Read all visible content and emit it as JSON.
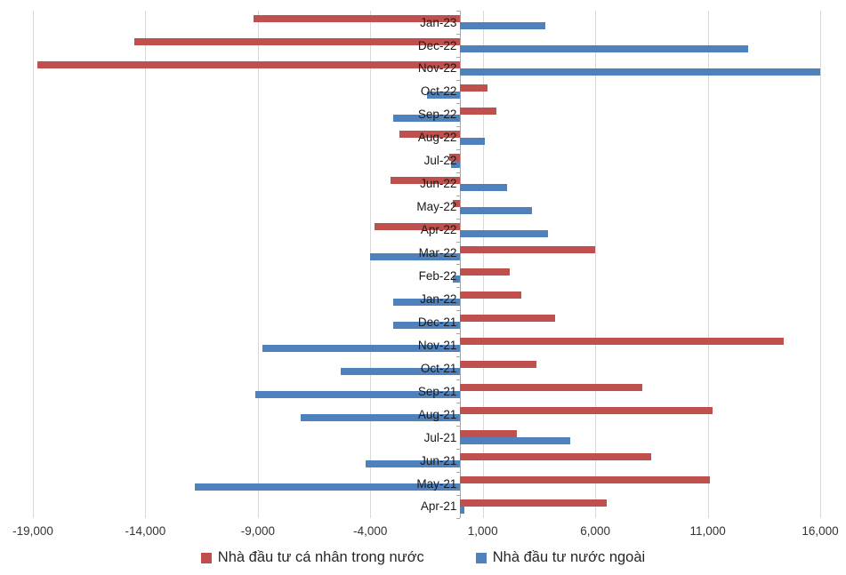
{
  "chart_data": {
    "type": "bar",
    "orientation": "horizontal",
    "title": "",
    "xlabel": "",
    "ylabel": "",
    "xlim": [
      -19000,
      16000
    ],
    "x_ticks": [
      -19000,
      -14000,
      -9000,
      -4000,
      1000,
      6000,
      11000,
      16000
    ],
    "x_tick_labels": [
      "-19,000",
      "-14,000",
      "-9,000",
      "-4,000",
      "1,000",
      "6,000",
      "11,000",
      "16,000"
    ],
    "grid": "vertical-major",
    "legend_position": "bottom",
    "categories": [
      "Jan-23",
      "Dec-22",
      "Nov-22",
      "Oct-22",
      "Sep-22",
      "Aug-22",
      "Jul-22",
      "Jun-22",
      "May-22",
      "Apr-22",
      "Mar-22",
      "Feb-22",
      "Jan-22",
      "Dec-21",
      "Nov-21",
      "Oct-21",
      "Sep-21",
      "Aug-21",
      "Jul-21",
      "Jun-21",
      "May-21",
      "Apr-21"
    ],
    "series": [
      {
        "name": "Nhà đầu tư cá nhân trong nước",
        "color": "#c0504d",
        "values": [
          -9200,
          -14500,
          -18800,
          1200,
          1600,
          -2700,
          -500,
          -3100,
          -350,
          -3800,
          6000,
          2200,
          2700,
          4200,
          14400,
          3400,
          8100,
          11200,
          2500,
          8500,
          11100,
          6500
        ]
      },
      {
        "name": "Nhà đầu tư nước ngoài",
        "color": "#4f81bd",
        "values": [
          3800,
          12800,
          16000,
          -1500,
          -3000,
          1100,
          -400,
          2100,
          3200,
          3900,
          -4000,
          -350,
          -3000,
          -3000,
          -8800,
          -5300,
          -9100,
          -7100,
          4900,
          -4200,
          -11800,
          200
        ]
      }
    ]
  },
  "colors": {
    "gridline": "#d9d9d9",
    "zero_axis": "#a6a6a6",
    "tick_label": "#333333",
    "category_label": "#1a1a1a",
    "background": "#ffffff"
  },
  "legend": {
    "items": [
      {
        "label": "Nhà đầu tư cá nhân trong nước",
        "color": "#c0504d"
      },
      {
        "label": "Nhà đầu tư nước ngoài",
        "color": "#4f81bd"
      }
    ]
  }
}
